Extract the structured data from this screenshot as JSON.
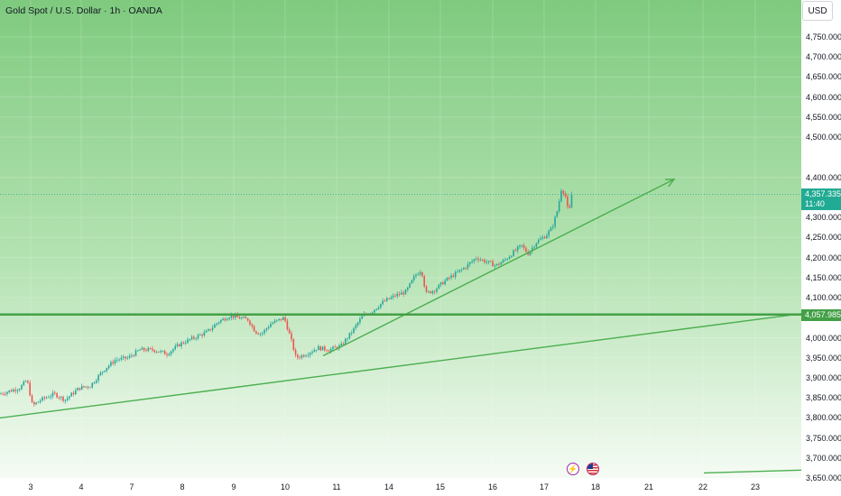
{
  "header": {
    "title": "Gold Spot / U.S. Dollar · 1h · OANDA",
    "currency": "USD"
  },
  "colors": {
    "up": "#26a69a",
    "down": "#ef5350",
    "trend": "#4caf50",
    "level": "#43a047",
    "price_badge": "#22ab94",
    "event_bolt": "#9c27b0",
    "event_flag": "#c2185b"
  },
  "events": [
    {
      "icon": "lightning-icon",
      "name": "economic-event"
    },
    {
      "icon": "us-flag-icon",
      "name": "us-news-event"
    }
  ],
  "chart_data": {
    "type": "candlestick",
    "title": "Gold Spot / U.S. Dollar · 1h · OANDA",
    "ylim": [
      3650,
      4790
    ],
    "y_ticks": [
      "4,750.000",
      "4,700.000",
      "4,650.000",
      "4,600.000",
      "4,550.000",
      "4,500.000",
      "4,400.000",
      "4,300.000",
      "4,250.000",
      "4,200.000",
      "4,150.000",
      "4,100.000",
      "4,000.000",
      "3,950.000",
      "3,900.000",
      "3,850.000",
      "3,800.000",
      "3,750.000",
      "3,700.000",
      "3,650.000"
    ],
    "x_ticks": [
      "3",
      "4",
      "7",
      "8",
      "9",
      "10",
      "11",
      "14",
      "15",
      "16",
      "17",
      "18",
      "21",
      "22",
      "23"
    ],
    "current_price": {
      "value": "4,357.335",
      "countdown": "11:40"
    },
    "level": {
      "value": "4,057.985",
      "price": 4057.985
    },
    "path": [
      [
        0,
        3860
      ],
      [
        22,
        3875
      ],
      [
        30,
        3895
      ],
      [
        36,
        3830
      ],
      [
        45,
        3845
      ],
      [
        60,
        3860
      ],
      [
        72,
        3845
      ],
      [
        88,
        3875
      ],
      [
        100,
        3880
      ],
      [
        115,
        3920
      ],
      [
        128,
        3945
      ],
      [
        142,
        3950
      ],
      [
        155,
        3970
      ],
      [
        170,
        3970
      ],
      [
        185,
        3960
      ],
      [
        200,
        3985
      ],
      [
        215,
        4000
      ],
      [
        230,
        4015
      ],
      [
        242,
        4040
      ],
      [
        255,
        4055
      ],
      [
        265,
        4050
      ],
      [
        275,
        4045
      ],
      [
        283,
        4015
      ],
      [
        290,
        4010
      ],
      [
        300,
        4035
      ],
      [
        315,
        4050
      ],
      [
        322,
        4000
      ],
      [
        328,
        3950
      ],
      [
        340,
        3960
      ],
      [
        352,
        3975
      ],
      [
        365,
        3970
      ],
      [
        378,
        3980
      ],
      [
        390,
        4015
      ],
      [
        402,
        4055
      ],
      [
        412,
        4065
      ],
      [
        425,
        4090
      ],
      [
        438,
        4105
      ],
      [
        450,
        4115
      ],
      [
        460,
        4155
      ],
      [
        467,
        4170
      ],
      [
        472,
        4110
      ],
      [
        482,
        4120
      ],
      [
        492,
        4140
      ],
      [
        505,
        4160
      ],
      [
        515,
        4175
      ],
      [
        528,
        4200
      ],
      [
        538,
        4190
      ],
      [
        550,
        4180
      ],
      [
        560,
        4195
      ],
      [
        570,
        4215
      ],
      [
        578,
        4230
      ],
      [
        585,
        4210
      ],
      [
        595,
        4240
      ],
      [
        605,
        4255
      ],
      [
        612,
        4275
      ],
      [
        618,
        4320
      ],
      [
        622,
        4370
      ],
      [
        626,
        4360
      ],
      [
        630,
        4310
      ],
      [
        635,
        4357
      ]
    ],
    "trendlines": [
      {
        "name": "lower-trendline",
        "from": [
          0,
          3800
        ],
        "to": [
          888,
          4060
        ],
        "arrow": false
      },
      {
        "name": "upper-trendline",
        "from": [
          358,
          3955
        ],
        "to": [
          747,
          4395
        ],
        "arrow": true
      },
      {
        "name": "future-trendline",
        "from": [
          780,
          3663
        ],
        "to": [
          888,
          3670
        ],
        "arrow": false
      }
    ]
  }
}
